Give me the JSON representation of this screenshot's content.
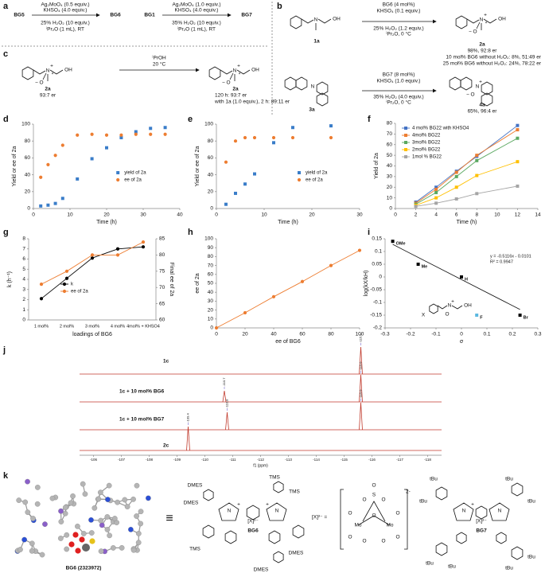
{
  "panels": {
    "labels": {
      "N": "N",
      "OH": "OH",
      "O": "O",
      "plus": "+",
      "minus": "−",
      "star": "*",
      "DMES": "DMES",
      "TMS": "TMS",
      "tBu": "tBu",
      "Mo": "Mo",
      "S": "S",
      "X": "X",
      "equiv": "≡"
    },
    "a": {
      "letter": "a",
      "reactant1": "BG5",
      "conditions1": [
        "Ag₂MoO₄ (0.5 equiv.)",
        "KHSO₄ (4.0 equiv.)",
        "25% H₂O₂ (10 equiv.)",
        "ⁱPr₂O (1 mL), RT"
      ],
      "product1": "BG6",
      "reactant2": "BG1",
      "conditions2": [
        "Ag₂MoO₄ (1.0 equiv.)",
        "KHSO₄ (4.0 equiv.)",
        "35% H₂O₂ (10 equiv.)",
        "ⁱPr₂O (1 mL), RT"
      ],
      "product2": "BG7"
    },
    "b": {
      "letter": "b",
      "substrate1": "1a",
      "conditions1": [
        "BG6 (4 mol%)",
        "KHSO₄ (0.1 equiv.)",
        "25% H₂O₂ (1.2 equiv.)",
        "ⁱPr₂O, 0 °C"
      ],
      "product1": "2a",
      "results1": [
        "98%, 92:8 er",
        "10 mol% BG6 without H₂O₂: 8%, 51:49 er",
        "25 mol% BG6 without H₂O₂: 24%, 78:22 er"
      ],
      "substrate2": "3a",
      "conditions2": [
        "BG7 (8 mol%)",
        "KHSO₄ (1.0 equiv.)",
        "35% H₂O₂ (4.0 equiv.)",
        "ⁱPr₂O, 0 °C"
      ],
      "product2": "4a",
      "results2": [
        "65%, 96:4 er"
      ]
    },
    "c": {
      "letter": "c",
      "substrate": "2a",
      "substrate_er": "93:7 er",
      "conditions": [
        "ⁱPrOH",
        "20 °C"
      ],
      "product": "2a",
      "results": [
        "120 h: 93:7 er",
        "with 1a (1.0 equiv.), 2 h: 89:11 er"
      ]
    },
    "d": {
      "letter": "d"
    },
    "e": {
      "letter": "e"
    },
    "f": {
      "letter": "f"
    },
    "g": {
      "letter": "g"
    },
    "h": {
      "letter": "h"
    },
    "i": {
      "letter": "i"
    },
    "j": {
      "letter": "j"
    },
    "k": {
      "letter": "k",
      "crystal_label": "BG6 (2323972)",
      "bg6": "BG6",
      "bg7": "BG7",
      "counterion": "[X]²⁻",
      "anion_def": "[X]²⁻ =",
      "charge": "2-"
    }
  },
  "chart_data": [
    {
      "type": "scatter",
      "xlabel": "Time (h)",
      "ylabel": "Yield or ee of 2a",
      "xlim": [
        0,
        40
      ],
      "xticks": [
        0,
        10,
        20,
        30,
        40
      ],
      "ylim": [
        0,
        100
      ],
      "yticks": [
        0,
        20,
        40,
        60,
        80,
        100
      ],
      "legend": "right",
      "series": [
        {
          "name": "yield of 2a",
          "color": "#3a7dc9",
          "marker": "square",
          "x": [
            2,
            4,
            6,
            8,
            12,
            16,
            20,
            24,
            28,
            32,
            36
          ],
          "values": [
            3,
            4,
            6,
            12,
            35,
            59,
            72,
            84,
            91,
            95,
            96
          ]
        },
        {
          "name": "ee of 2a",
          "color": "#ed7d31",
          "marker": "circle",
          "x": [
            2,
            4,
            6,
            8,
            12,
            16,
            20,
            24,
            28,
            32,
            36
          ],
          "values": [
            37,
            52,
            63,
            75,
            87,
            88,
            87,
            87,
            88,
            88,
            88
          ]
        }
      ]
    },
    {
      "type": "scatter",
      "xlabel": "Time (h)",
      "ylabel": "Yield or ee of 2a",
      "xlim": [
        0,
        30
      ],
      "xticks": [
        0,
        10,
        20,
        30
      ],
      "ylim": [
        0,
        100
      ],
      "yticks": [
        0,
        20,
        40,
        60,
        80,
        100
      ],
      "legend": "right",
      "series": [
        {
          "name": "yield of 2a",
          "color": "#3a7dc9",
          "marker": "square",
          "x": [
            2,
            4,
            6,
            8,
            12,
            16,
            24
          ],
          "values": [
            5,
            18,
            29,
            41,
            78,
            96,
            98
          ]
        },
        {
          "name": "ee of 2a",
          "color": "#ed7d31",
          "marker": "circle",
          "x": [
            2,
            4,
            6,
            8,
            12,
            16,
            24
          ],
          "values": [
            55,
            80,
            84,
            84,
            84,
            84,
            84
          ]
        }
      ]
    },
    {
      "type": "scatter",
      "xlabel": "Time (h)",
      "ylabel": "Yield of 2a",
      "xlim": [
        0,
        14
      ],
      "xticks": [
        0,
        2,
        4,
        6,
        8,
        10,
        12,
        14
      ],
      "ylim": [
        0,
        80
      ],
      "yticks": [
        0,
        10,
        20,
        30,
        40,
        50,
        60,
        70,
        80
      ],
      "legend": "upper left",
      "series": [
        {
          "name": "4 mol% BG22 with KHSO4",
          "color": "#4472c4",
          "marker": "square",
          "line": true,
          "x": [
            2,
            4,
            6,
            8,
            12
          ],
          "values": [
            6,
            20,
            35,
            49,
            78
          ]
        },
        {
          "name": "4mol% BG22",
          "color": "#ed7d31",
          "marker": "square",
          "line": true,
          "x": [
            2,
            4,
            6,
            8,
            12
          ],
          "values": [
            5,
            18,
            34,
            50,
            74
          ]
        },
        {
          "name": "3mol% BG22",
          "color": "#5aa860",
          "marker": "square",
          "line": true,
          "x": [
            2,
            4,
            6,
            8,
            12
          ],
          "values": [
            4,
            15,
            30,
            45,
            66
          ]
        },
        {
          "name": "2mol% BG22",
          "color": "#ffc000",
          "marker": "square",
          "line": true,
          "x": [
            2,
            4,
            6,
            8,
            12
          ],
          "values": [
            3,
            10,
            20,
            31,
            44
          ]
        },
        {
          "name": "1mol % BG22",
          "color": "#a5a5a5",
          "marker": "square",
          "line": true,
          "x": [
            2,
            4,
            6,
            8,
            12
          ],
          "values": [
            2,
            5,
            9,
            14,
            21
          ]
        }
      ]
    },
    {
      "type": "line",
      "xlabel": "loadings of BG6",
      "ylabel": "k (h⁻¹)",
      "y2label": "Final ee of 2a",
      "categories": [
        "1 mol%",
        "2 mol%",
        "3 mol%",
        "4 mol%",
        "4mol% + KHSO4"
      ],
      "ylim": [
        0,
        8
      ],
      "yticks": [
        0,
        1,
        2,
        3,
        4,
        5,
        6,
        7,
        8
      ],
      "y2lim": [
        60,
        85
      ],
      "y2ticks": [
        60,
        65,
        70,
        75,
        80,
        85
      ],
      "legend": "center",
      "series": [
        {
          "name": "k",
          "color": "#000000",
          "marker": "circle",
          "line": true,
          "values": [
            2.1,
            4.1,
            6.1,
            7,
            7.2
          ]
        },
        {
          "name": "ee of 2a",
          "color": "#ed7d31",
          "marker": "circle",
          "line": true,
          "axis": "y2",
          "values": [
            71,
            75,
            80,
            80,
            84
          ]
        }
      ]
    },
    {
      "type": "scatter",
      "xlabel": "ee of BG6",
      "ylabel": "ee of 2a",
      "xlim": [
        0,
        100
      ],
      "xticks": [
        0,
        20,
        40,
        60,
        80,
        100
      ],
      "ylim": [
        0,
        100
      ],
      "yticks": [
        0,
        10,
        20,
        30,
        40,
        50,
        60,
        70,
        80,
        90,
        100
      ],
      "series": [
        {
          "color": "#ed7d31",
          "marker": "circle",
          "line": true,
          "x": [
            0,
            20,
            40,
            60,
            80,
            100
          ],
          "values": [
            0,
            17,
            35,
            52,
            70,
            87
          ]
        }
      ]
    },
    {
      "type": "scatter",
      "xlabel": "σ",
      "ylabel": "log(kX/kH)",
      "xlim": [
        -0.3,
        0.3
      ],
      "xticks": [
        -0.3,
        -0.2,
        -0.1,
        0,
        0.1,
        0.2,
        0.3
      ],
      "ylim": [
        -0.2,
        0.15
      ],
      "yticks": [
        -0.2,
        -0.15,
        -0.1,
        -0.05,
        0,
        0.05,
        0.1,
        0.15
      ],
      "equation": "y = -0.5116x - 0.0101",
      "r_squared": "R² = 0.9947",
      "trendline": {
        "slope": -0.5116,
        "intercept": -0.0101
      },
      "series": [
        {
          "color": "#000000",
          "colors": [
            "#000000",
            "#000000",
            "#000000",
            "#5bb8e0",
            "#000000"
          ],
          "marker": "square",
          "x": [
            -0.27,
            -0.17,
            0,
            0.06,
            0.23
          ],
          "values": [
            0.14,
            0.05,
            0,
            -0.15,
            -0.15
          ],
          "point_labels": [
            "OMe",
            "Me",
            "H",
            "F",
            "Br"
          ]
        }
      ]
    },
    {
      "type": "spectrum",
      "xlabel": "f1 (ppm)",
      "xlim": [
        -105.5,
        -118.5
      ],
      "xticks": [
        -106,
        -107,
        -108,
        -109,
        -110,
        -111,
        -112,
        -113,
        -114,
        -115,
        -116,
        -117,
        -118
      ],
      "peak_label_color": "#5b4bc4",
      "series": [
        {
          "name": "1c",
          "color": "#c0392b",
          "peaks": [
            -115.6
          ]
        },
        {
          "name": "1c + 10 mol% BG6",
          "color": "#c0392b",
          "peaks": [
            -110.7,
            -115.6
          ]
        },
        {
          "name": "1c + 10 mol% BG7",
          "color": "#c0392b",
          "peaks": [
            -110.8,
            -115.6
          ]
        },
        {
          "name": "2c",
          "color": "#c0392b",
          "peaks": [
            -109.4
          ]
        }
      ]
    }
  ]
}
